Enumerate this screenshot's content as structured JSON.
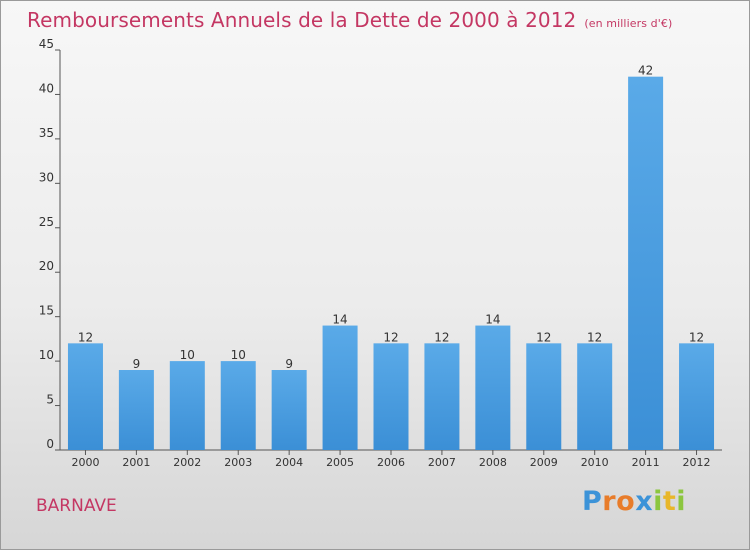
{
  "chart_data": {
    "type": "bar",
    "title": "Remboursements Annuels de la Dette de 2000 à 2012",
    "subtitle": "(en milliers d'€)",
    "categories": [
      "2000",
      "2001",
      "2002",
      "2003",
      "2004",
      "2005",
      "2006",
      "2007",
      "2008",
      "2009",
      "2010",
      "2011",
      "2012"
    ],
    "values": [
      12,
      9,
      10,
      10,
      9,
      14,
      12,
      12,
      14,
      12,
      12,
      42,
      12
    ],
    "ylim": [
      0,
      45
    ],
    "yticks": [
      0,
      5,
      10,
      15,
      20,
      25,
      30,
      35,
      40,
      45
    ],
    "grid": false,
    "bar_color": "#3b8fd6"
  },
  "commune": "BARNAVE",
  "logo": {
    "letters": [
      {
        "ch": "P",
        "color": "#3c93d8"
      },
      {
        "ch": "r",
        "color": "#e87c2a"
      },
      {
        "ch": "o",
        "color": "#e87c2a"
      },
      {
        "ch": "x",
        "color": "#3c93d8"
      },
      {
        "ch": "i",
        "color": "#8cc63f"
      },
      {
        "ch": "t",
        "color": "#e8b72a"
      },
      {
        "ch": "i",
        "color": "#8cc63f"
      }
    ]
  },
  "colors": {
    "accent": "#c43763",
    "axis": "#555555"
  }
}
